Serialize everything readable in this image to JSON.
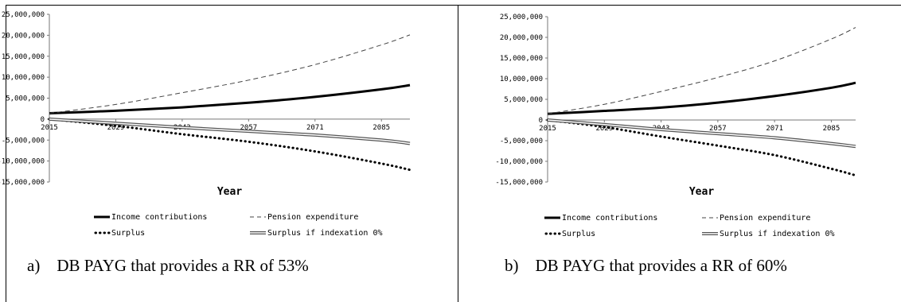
{
  "chart_data": [
    {
      "type": "line",
      "caption": "a) DB PAYG that provides a RR of 53%",
      "xlabel": "Year",
      "x_ticks": [
        "2015",
        "2029",
        "2043",
        "2057",
        "2071",
        "2085"
      ],
      "xlim": [
        2015,
        2091
      ],
      "ylim": [
        -15000000,
        25000000
      ],
      "y_ticks": [
        "25,000,000",
        "20,000,000",
        "15,000,000",
        "10,000,000",
        "5,000,000",
        "0",
        "-5,000,000",
        "-10,000,000",
        "-15,000,000"
      ],
      "grid": false,
      "legend_position": "bottom",
      "x": [
        2015,
        2029,
        2043,
        2057,
        2071,
        2085,
        2091
      ],
      "series": [
        {
          "name": "Income contributions",
          "style": "thick-solid",
          "values": [
            1400000,
            2000000,
            2800000,
            3900000,
            5300000,
            7100000,
            8100000
          ]
        },
        {
          "name": "Pension expenditure",
          "style": "dashed",
          "values": [
            1400000,
            3500000,
            6300000,
            9300000,
            13000000,
            17700000,
            20100000
          ]
        },
        {
          "name": "Surplus",
          "style": "dotted",
          "values": [
            0,
            -1600000,
            -3600000,
            -5400000,
            -7700000,
            -10600000,
            -12100000
          ]
        },
        {
          "name": "Surplus if indexation 0%",
          "style": "double",
          "values": [
            0,
            -1000000,
            -2000000,
            -2900000,
            -3800000,
            -5000000,
            -5800000
          ]
        }
      ]
    },
    {
      "type": "line",
      "caption": "b) DB PAYG that provides a RR of 60%",
      "xlabel": "Year",
      "x_ticks": [
        "2015",
        "2029",
        "2043",
        "2057",
        "2071",
        "2085"
      ],
      "xlim": [
        2015,
        2091
      ],
      "ylim": [
        -15000000,
        25000000
      ],
      "y_ticks": [
        "25,000,000",
        "20,000,000",
        "15,000,000",
        "10,000,000",
        "5,000,000",
        "0",
        "-5,000,000",
        "-10,000,000",
        "-15,000,000"
      ],
      "grid": false,
      "legend_position": "bottom",
      "x": [
        2015,
        2029,
        2043,
        2057,
        2071,
        2085,
        2091
      ],
      "series": [
        {
          "name": "Income contributions",
          "style": "thick-solid",
          "values": [
            1500000,
            2200000,
            3000000,
            4200000,
            5800000,
            7800000,
            9000000
          ]
        },
        {
          "name": "Pension expenditure",
          "style": "dashed",
          "values": [
            1500000,
            3800000,
            6900000,
            10300000,
            14300000,
            19600000,
            22400000
          ]
        },
        {
          "name": "Surplus",
          "style": "dotted",
          "values": [
            0,
            -1700000,
            -4000000,
            -6200000,
            -8500000,
            -11800000,
            -13400000
          ]
        },
        {
          "name": "Surplus if indexation 0%",
          "style": "double",
          "values": [
            0,
            -1100000,
            -2300000,
            -3300000,
            -4300000,
            -5700000,
            -6400000
          ]
        }
      ]
    }
  ]
}
